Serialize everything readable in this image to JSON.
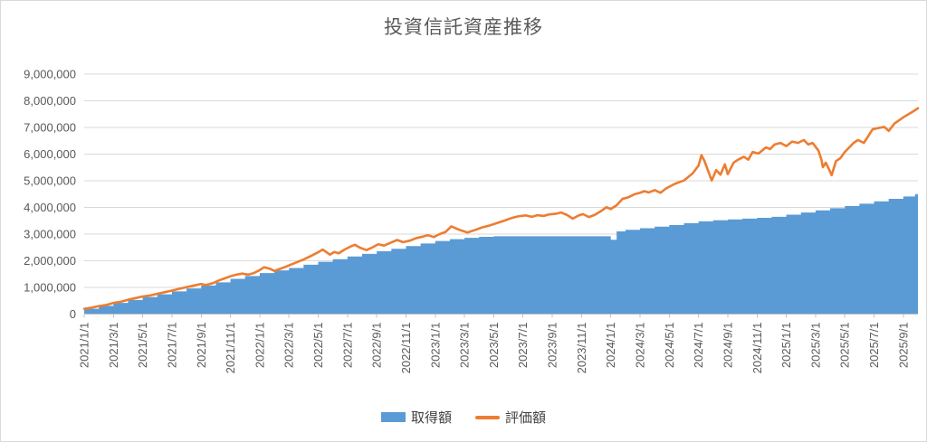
{
  "chart": {
    "title": "投資信託資産推移",
    "legend": [
      {
        "label": "取得額",
        "color": "#5B9BD5",
        "type": "area"
      },
      {
        "label": "評価額",
        "color": "#ED7D31",
        "type": "line"
      }
    ]
  },
  "chart_data": {
    "type": "area",
    "subtype": "combo: stepped-area (取得額) + line (評価額)",
    "title": "投資信託資産推移",
    "x_unit": "months since 2021/1/1",
    "xlim": [
      0,
      57
    ],
    "ylim": [
      0,
      9000000
    ],
    "y_tick_step": 1000000,
    "y_tick_labels": [
      "0",
      "1,000,000",
      "2,000,000",
      "3,000,000",
      "4,000,000",
      "5,000,000",
      "6,000,000",
      "7,000,000",
      "8,000,000",
      "9,000,000"
    ],
    "x_tick_positions": [
      0,
      2,
      4,
      6,
      8,
      10,
      12,
      14,
      16,
      18,
      20,
      22,
      24,
      26,
      28,
      30,
      32,
      34,
      36,
      38,
      40,
      42,
      44,
      46,
      48,
      50,
      52,
      54,
      56
    ],
    "x_tick_labels": [
      "2021/1/1",
      "2021/3/1",
      "2021/5/1",
      "2021/7/1",
      "2021/9/1",
      "2021/11/1",
      "2022/1/1",
      "2022/3/1",
      "2022/5/1",
      "2022/7/1",
      "2022/9/1",
      "2022/11/1",
      "2023/1/1",
      "2023/3/1",
      "2023/5/1",
      "2023/7/1",
      "2023/9/1",
      "2023/11/1",
      "2024/1/1",
      "2024/3/1",
      "2024/5/1",
      "2024/7/1",
      "2024/9/1",
      "2024/11/1",
      "2025/1/1",
      "2025/3/1",
      "2025/5/1",
      "2025/7/1",
      "2025/9/1"
    ],
    "grid": true,
    "legend_position": "bottom",
    "colors": {
      "grid": "#d9d9d9",
      "axis": "#bfbfbf",
      "text": "#595959"
    },
    "series": [
      {
        "name": "取得額",
        "type": "area",
        "step": true,
        "color": "#5B9BD5",
        "points": [
          [
            0,
            200000
          ],
          [
            1,
            310000
          ],
          [
            2,
            420000
          ],
          [
            3,
            530000
          ],
          [
            4,
            640000
          ],
          [
            5,
            740000
          ],
          [
            6,
            850000
          ],
          [
            7,
            960000
          ],
          [
            8,
            1070000
          ],
          [
            9,
            1190000
          ],
          [
            10,
            1320000
          ],
          [
            11,
            1430000
          ],
          [
            12,
            1540000
          ],
          [
            13,
            1640000
          ],
          [
            14,
            1730000
          ],
          [
            15,
            1850000
          ],
          [
            16,
            1960000
          ],
          [
            17,
            2060000
          ],
          [
            18,
            2160000
          ],
          [
            19,
            2260000
          ],
          [
            20,
            2360000
          ],
          [
            21,
            2450000
          ],
          [
            22,
            2550000
          ],
          [
            23,
            2650000
          ],
          [
            24,
            2740000
          ],
          [
            25,
            2810000
          ],
          [
            26,
            2860000
          ],
          [
            27,
            2900000
          ],
          [
            28,
            2920000
          ],
          [
            36,
            2790000
          ],
          [
            36.4,
            3100000
          ],
          [
            37,
            3160000
          ],
          [
            38,
            3220000
          ],
          [
            39,
            3280000
          ],
          [
            40,
            3340000
          ],
          [
            41,
            3410000
          ],
          [
            42,
            3480000
          ],
          [
            43,
            3520000
          ],
          [
            44,
            3550000
          ],
          [
            45,
            3580000
          ],
          [
            46,
            3610000
          ],
          [
            47,
            3650000
          ],
          [
            48,
            3730000
          ],
          [
            49,
            3810000
          ],
          [
            50,
            3890000
          ],
          [
            51,
            3970000
          ],
          [
            52,
            4050000
          ],
          [
            53,
            4140000
          ],
          [
            54,
            4230000
          ],
          [
            55,
            4320000
          ],
          [
            56,
            4410000
          ],
          [
            56.8,
            4500000
          ]
        ]
      },
      {
        "name": "評価額",
        "type": "line",
        "color": "#ED7D31",
        "points": [
          [
            0,
            200000
          ],
          [
            0.5,
            240000
          ],
          [
            1,
            300000
          ],
          [
            1.5,
            340000
          ],
          [
            2,
            420000
          ],
          [
            2.5,
            460000
          ],
          [
            3,
            540000
          ],
          [
            3.5,
            600000
          ],
          [
            4,
            660000
          ],
          [
            4.5,
            700000
          ],
          [
            5,
            760000
          ],
          [
            5.5,
            820000
          ],
          [
            6,
            880000
          ],
          [
            6.5,
            950000
          ],
          [
            7,
            1010000
          ],
          [
            7.5,
            1070000
          ],
          [
            8,
            1130000
          ],
          [
            8.3,
            1090000
          ],
          [
            8.8,
            1160000
          ],
          [
            9.2,
            1260000
          ],
          [
            9.6,
            1340000
          ],
          [
            10,
            1420000
          ],
          [
            10.4,
            1480000
          ],
          [
            10.8,
            1520000
          ],
          [
            11.2,
            1480000
          ],
          [
            11.6,
            1540000
          ],
          [
            12,
            1650000
          ],
          [
            12.3,
            1760000
          ],
          [
            12.7,
            1700000
          ],
          [
            13,
            1620000
          ],
          [
            13.4,
            1700000
          ],
          [
            13.8,
            1780000
          ],
          [
            14.2,
            1870000
          ],
          [
            14.6,
            1960000
          ],
          [
            15,
            2050000
          ],
          [
            15.5,
            2180000
          ],
          [
            16,
            2320000
          ],
          [
            16.3,
            2420000
          ],
          [
            16.8,
            2230000
          ],
          [
            17.1,
            2330000
          ],
          [
            17.4,
            2280000
          ],
          [
            17.8,
            2420000
          ],
          [
            18.2,
            2530000
          ],
          [
            18.5,
            2600000
          ],
          [
            18.9,
            2480000
          ],
          [
            19.3,
            2400000
          ],
          [
            19.7,
            2500000
          ],
          [
            20.1,
            2620000
          ],
          [
            20.5,
            2570000
          ],
          [
            21,
            2690000
          ],
          [
            21.4,
            2780000
          ],
          [
            21.8,
            2700000
          ],
          [
            22.3,
            2760000
          ],
          [
            22.7,
            2850000
          ],
          [
            23.1,
            2900000
          ],
          [
            23.5,
            2960000
          ],
          [
            23.9,
            2890000
          ],
          [
            24.3,
            3000000
          ],
          [
            24.7,
            3080000
          ],
          [
            25.1,
            3290000
          ],
          [
            25.6,
            3170000
          ],
          [
            26.2,
            3060000
          ],
          [
            26.7,
            3150000
          ],
          [
            27.2,
            3250000
          ],
          [
            27.7,
            3320000
          ],
          [
            28.2,
            3410000
          ],
          [
            28.7,
            3500000
          ],
          [
            29.2,
            3600000
          ],
          [
            29.7,
            3670000
          ],
          [
            30.2,
            3700000
          ],
          [
            30.6,
            3650000
          ],
          [
            31,
            3710000
          ],
          [
            31.4,
            3680000
          ],
          [
            31.8,
            3740000
          ],
          [
            32.2,
            3760000
          ],
          [
            32.6,
            3810000
          ],
          [
            33,
            3720000
          ],
          [
            33.4,
            3580000
          ],
          [
            33.8,
            3700000
          ],
          [
            34.1,
            3750000
          ],
          [
            34.5,
            3640000
          ],
          [
            34.9,
            3720000
          ],
          [
            35.3,
            3850000
          ],
          [
            35.7,
            4010000
          ],
          [
            36,
            3940000
          ],
          [
            36.4,
            4080000
          ],
          [
            36.8,
            4320000
          ],
          [
            37.2,
            4380000
          ],
          [
            37.6,
            4490000
          ],
          [
            38,
            4550000
          ],
          [
            38.3,
            4610000
          ],
          [
            38.6,
            4560000
          ],
          [
            39,
            4650000
          ],
          [
            39.4,
            4550000
          ],
          [
            39.8,
            4720000
          ],
          [
            40.4,
            4890000
          ],
          [
            41,
            5010000
          ],
          [
            41.6,
            5280000
          ],
          [
            42,
            5570000
          ],
          [
            42.2,
            5960000
          ],
          [
            42.4,
            5750000
          ],
          [
            42.6,
            5450000
          ],
          [
            42.9,
            5010000
          ],
          [
            43.2,
            5400000
          ],
          [
            43.5,
            5230000
          ],
          [
            43.8,
            5620000
          ],
          [
            44,
            5250000
          ],
          [
            44.4,
            5680000
          ],
          [
            44.7,
            5790000
          ],
          [
            45.1,
            5900000
          ],
          [
            45.4,
            5790000
          ],
          [
            45.7,
            6080000
          ],
          [
            46.1,
            6020000
          ],
          [
            46.6,
            6250000
          ],
          [
            46.9,
            6190000
          ],
          [
            47.2,
            6360000
          ],
          [
            47.6,
            6420000
          ],
          [
            48,
            6300000
          ],
          [
            48.4,
            6470000
          ],
          [
            48.8,
            6420000
          ],
          [
            49.2,
            6530000
          ],
          [
            49.5,
            6360000
          ],
          [
            49.8,
            6420000
          ],
          [
            50.2,
            6130000
          ],
          [
            50.4,
            5790000
          ],
          [
            50.5,
            5510000
          ],
          [
            50.7,
            5680000
          ],
          [
            50.9,
            5450000
          ],
          [
            51.1,
            5210000
          ],
          [
            51.4,
            5740000
          ],
          [
            51.7,
            5850000
          ],
          [
            52,
            6080000
          ],
          [
            52.6,
            6420000
          ],
          [
            52.9,
            6530000
          ],
          [
            53.3,
            6420000
          ],
          [
            53.9,
            6930000
          ],
          [
            54.3,
            6980000
          ],
          [
            54.7,
            7020000
          ],
          [
            55,
            6870000
          ],
          [
            55.4,
            7150000
          ],
          [
            56,
            7380000
          ],
          [
            56.7,
            7610000
          ],
          [
            57,
            7720000
          ]
        ]
      }
    ]
  }
}
